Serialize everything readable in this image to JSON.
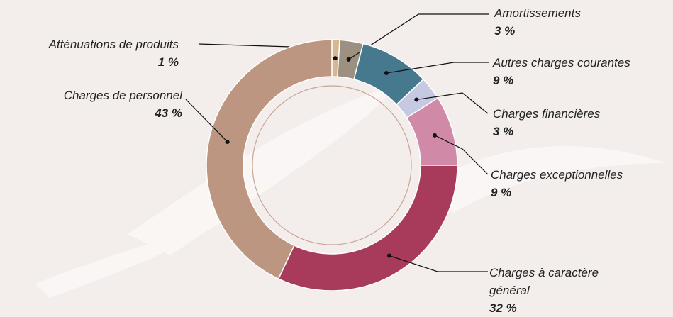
{
  "chart_data": {
    "type": "donut",
    "categories": [
      "Atténuations de produits",
      "Amortissements",
      "Autres charges courantes",
      "Charges financières",
      "Charges exceptionnelles",
      "Charges à caractère général",
      "Charges de personnel"
    ],
    "values": [
      1,
      3,
      9,
      3,
      9,
      32,
      43
    ],
    "value_labels": [
      "1 %",
      "3 %",
      "9 %",
      "3 %",
      "9 %",
      "32 %",
      "43 %"
    ],
    "colors": [
      "#d8b78f",
      "#9c9080",
      "#47798e",
      "#c6c9e2",
      "#d08aa8",
      "#a83a5c",
      "#bd9682"
    ]
  }
}
